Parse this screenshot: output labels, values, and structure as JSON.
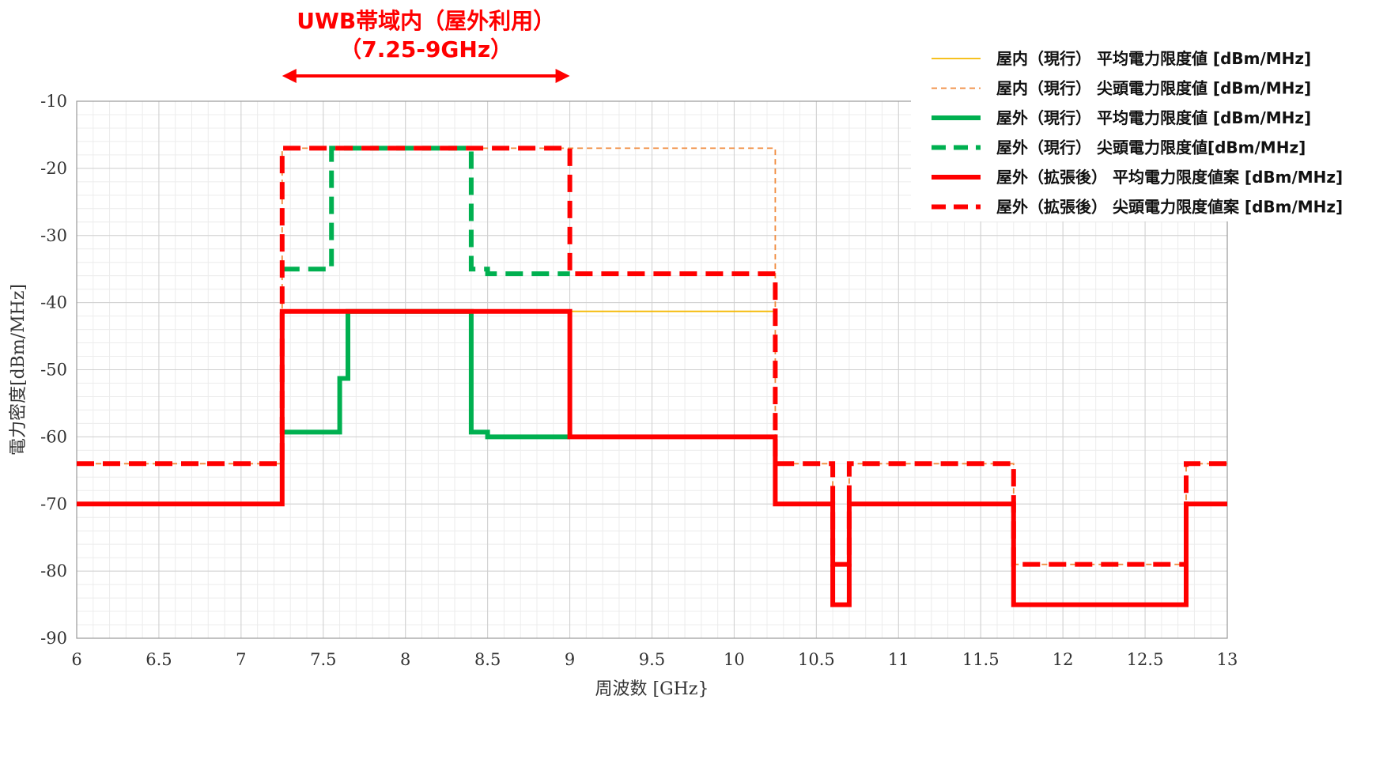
{
  "chart_data": {
    "type": "line",
    "title": "",
    "xlabel": "周波数 [GHz}",
    "ylabel": "電力密度[dBm/MHz]",
    "xlim": [
      6,
      13
    ],
    "ylim": [
      -90,
      -10
    ],
    "x_ticks": [
      6,
      6.5,
      7,
      7.5,
      8,
      8.5,
      9,
      9.5,
      10,
      10.5,
      11,
      11.5,
      12,
      12.5,
      13
    ],
    "x_tick_labels": [
      "6",
      "6.5",
      "7",
      "7.5",
      "8",
      "8.5",
      "9",
      "9.5",
      "10",
      "10.5",
      "11",
      "11.5",
      "12",
      "12.5",
      "13"
    ],
    "y_ticks": [
      -10,
      -20,
      -30,
      -40,
      -50,
      -60,
      -70,
      -80,
      -90
    ],
    "y_tick_labels": [
      "-10",
      "-20",
      "-30",
      "-40",
      "-50",
      "-60",
      "-70",
      "-80",
      "-90"
    ],
    "grid": true,
    "legend_position": "top-right",
    "annotation": {
      "line1": "UWB帯域内（屋外利用）",
      "line2": "（7.25-9GHz）",
      "x_range": [
        7.25,
        9
      ],
      "color": "#ff0000"
    },
    "series": [
      {
        "name": "屋内（現行） 平均電力限度値 [dBm/MHz]",
        "color": "#f5b800",
        "style": "solid",
        "weight": "thin",
        "points": [
          [
            7.25,
            -41.3
          ],
          [
            10.25,
            -41.3
          ]
        ]
      },
      {
        "name": "屋内（現行） 尖頭電力限度値 [dBm/MHz]",
        "color": "#f08a3c",
        "style": "dashed",
        "weight": "thin",
        "points": [
          [
            6,
            -64
          ],
          [
            7.25,
            -64
          ],
          [
            7.25,
            -17
          ],
          [
            10.25,
            -17
          ],
          [
            10.25,
            -64
          ],
          [
            10.6,
            -64
          ],
          [
            10.6,
            -79
          ],
          [
            10.7,
            -79
          ],
          [
            10.7,
            -64
          ],
          [
            11.7,
            -64
          ],
          [
            11.7,
            -79
          ],
          [
            12.75,
            -79
          ],
          [
            12.75,
            -64
          ],
          [
            13,
            -64
          ]
        ]
      },
      {
        "name": "屋外（現行） 平均電力限度値 [dBm/MHz]",
        "color": "#00b050",
        "style": "solid",
        "weight": "thick",
        "points": [
          [
            7.25,
            -59.3
          ],
          [
            7.6,
            -59.3
          ],
          [
            7.6,
            -51.3
          ],
          [
            7.65,
            -51.3
          ],
          [
            7.65,
            -41.3
          ],
          [
            8.4,
            -41.3
          ],
          [
            8.4,
            -59.3
          ],
          [
            8.5,
            -59.3
          ],
          [
            8.5,
            -60
          ],
          [
            9,
            -60
          ]
        ]
      },
      {
        "name": "屋外（現行） 尖頭電力限度値[dBm/MHz]",
        "color": "#00b050",
        "style": "dashed",
        "weight": "thick",
        "points": [
          [
            7.25,
            -35
          ],
          [
            7.55,
            -35
          ],
          [
            7.55,
            -17
          ],
          [
            8.4,
            -17
          ],
          [
            8.4,
            -35
          ],
          [
            8.5,
            -35
          ],
          [
            8.5,
            -35.7
          ],
          [
            9,
            -35.7
          ]
        ]
      },
      {
        "name": "屋外（拡張後） 平均電力限度値案 [dBm/MHz]",
        "color": "#ff0000",
        "style": "solid",
        "weight": "thick",
        "points": [
          [
            6,
            -70
          ],
          [
            7.25,
            -70
          ],
          [
            7.25,
            -41.3
          ],
          [
            9,
            -41.3
          ],
          [
            9,
            -60
          ],
          [
            10.25,
            -60
          ],
          [
            10.25,
            -70
          ],
          [
            10.6,
            -70
          ],
          [
            10.6,
            -85
          ],
          [
            10.7,
            -85
          ],
          [
            10.7,
            -70
          ],
          [
            11.7,
            -70
          ],
          [
            11.7,
            -85
          ],
          [
            12.75,
            -85
          ],
          [
            12.75,
            -70
          ],
          [
            13,
            -70
          ]
        ]
      },
      {
        "name": "屋外（拡張後） 尖頭電力限度値案 [dBm/MHz]",
        "color": "#ff0000",
        "style": "dashed",
        "weight": "thick",
        "points": [
          [
            6,
            -64
          ],
          [
            7.25,
            -64
          ],
          [
            7.25,
            -17
          ],
          [
            9,
            -17
          ],
          [
            9,
            -35.7
          ],
          [
            10.25,
            -35.7
          ],
          [
            10.25,
            -64
          ],
          [
            10.6,
            -64
          ],
          [
            10.6,
            -79
          ],
          [
            10.7,
            -79
          ],
          [
            10.7,
            -64
          ],
          [
            11.7,
            -64
          ],
          [
            11.7,
            -79
          ],
          [
            12.75,
            -79
          ],
          [
            12.75,
            -64
          ],
          [
            13,
            -64
          ]
        ]
      }
    ]
  }
}
